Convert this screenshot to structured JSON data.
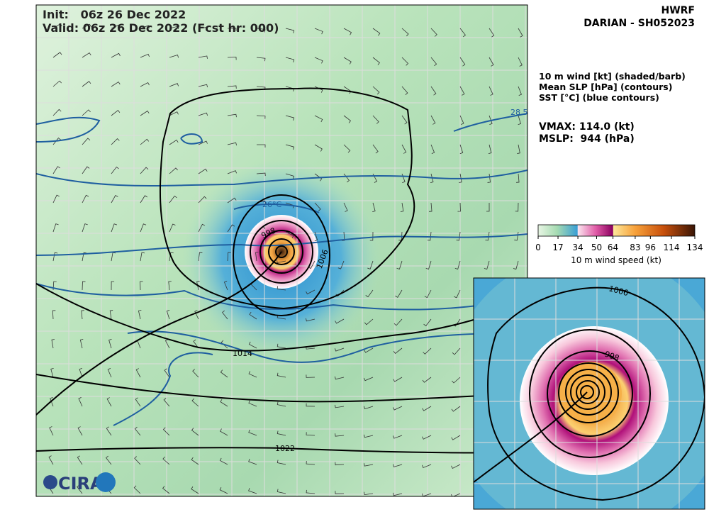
{
  "header": {
    "init": "Init:   06z 26 Dec 2022",
    "valid": "Valid: 06z 26 Dec 2022 (Fcst hr: 000)",
    "model": "HWRF",
    "storm": "DARIAN - SH052023"
  },
  "legend": {
    "lines": [
      "10 m wind [kt] (shaded/barb)",
      "Mean SLP [hPa] (contours)",
      "SST [°C] (blue contours)"
    ],
    "vmax": "VMAX: 114.0 (kt)",
    "mslp": "MSLP:  944 (hPa)"
  },
  "colorbar": {
    "ticks": [
      0,
      17,
      34,
      50,
      64,
      83,
      96,
      114,
      134
    ],
    "label": "10 m wind speed (kt)"
  },
  "map": {
    "contour_labels": [
      "1006",
      "998",
      "1014",
      "1022"
    ],
    "sst_labels": [
      "26°C",
      "28.5"
    ],
    "logo": "CIRA"
  },
  "inset": {
    "contour_labels": [
      "1006",
      "998"
    ]
  }
}
